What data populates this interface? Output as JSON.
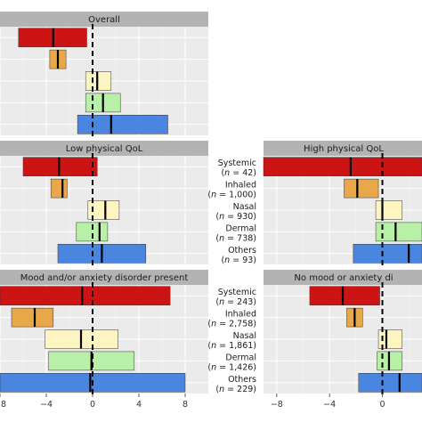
{
  "chart_data": {
    "type": "bar",
    "colors": {
      "Systemic": "#cc1414",
      "Inhaled": "#e8a84a",
      "Nasal": "#fcf5c2",
      "Dermal": "#b7f0a6",
      "Others": "#4a86e0"
    },
    "categories": [
      "Systemic",
      "Inhaled",
      "Nasal",
      "Dermal",
      "Others"
    ],
    "x_ticks": [
      -8,
      -4,
      0,
      4,
      8
    ],
    "x_tick_labels": [
      "−8",
      "−4",
      "0",
      "4",
      "8"
    ],
    "panels": [
      {
        "title": "Overall",
        "xlim": [
          -8,
          10
        ],
        "rows": [
          {
            "category": "Systemic",
            "low": -6.4,
            "high": -0.5,
            "median": -3.4
          },
          {
            "category": "Inhaled",
            "low": -3.7,
            "high": -2.3,
            "median": -3.0
          },
          {
            "category": "Nasal",
            "low": -0.6,
            "high": 1.6,
            "median": 0.4
          },
          {
            "category": "Dermal",
            "low": -0.6,
            "high": 2.4,
            "median": 0.9
          },
          {
            "category": "Others",
            "low": -1.3,
            "high": 6.5,
            "median": 1.6
          }
        ]
      },
      {
        "title": "Low physical QoL",
        "xlim": [
          -8,
          10
        ],
        "rows": [
          {
            "category": "Systemic",
            "low": -6.0,
            "high": 0.4,
            "median": -2.9
          },
          {
            "category": "Inhaled",
            "low": -3.6,
            "high": -2.2,
            "median": -2.6
          },
          {
            "category": "Nasal",
            "low": -0.4,
            "high": 2.3,
            "median": 1.1
          },
          {
            "category": "Dermal",
            "low": -1.4,
            "high": 1.3,
            "median": 0.6
          },
          {
            "category": "Others",
            "low": -3.0,
            "high": 4.6,
            "median": 0.8
          }
        ]
      },
      {
        "title": "Mood and/or anxiety disorder present",
        "xlim": [
          -8,
          10
        ],
        "rows": [
          {
            "category": "Systemic",
            "low": -8.6,
            "high": 6.7,
            "median": -0.9
          },
          {
            "category": "Inhaled",
            "low": -7.0,
            "high": -3.4,
            "median": -5.0
          },
          {
            "category": "Nasal",
            "low": -4.1,
            "high": 2.2,
            "median": -1.0
          },
          {
            "category": "Dermal",
            "low": -3.8,
            "high": 3.6,
            "median": -0.1
          },
          {
            "category": "Others",
            "low": -8.6,
            "high": 8.0,
            "median": -0.2
          }
        ]
      },
      {
        "title": "High physical QoL",
        "xlim": [
          -9,
          3
        ],
        "rows": [
          {
            "category": "Systemic",
            "low": -9.5,
            "high": 5.0,
            "median": -2.4,
            "n": "42"
          },
          {
            "category": "Inhaled",
            "low": -2.9,
            "high": -0.3,
            "median": -1.9,
            "n": "1,000"
          },
          {
            "category": "Nasal",
            "low": -0.5,
            "high": 1.5,
            "median": 0.0,
            "n": "930"
          },
          {
            "category": "Dermal",
            "low": -0.5,
            "high": 3.0,
            "median": 1.0,
            "n": "738"
          },
          {
            "category": "Others",
            "low": -2.2,
            "high": 3.0,
            "median": 2.0,
            "n": "93"
          }
        ]
      },
      {
        "title": "No mood or anxiety di",
        "xlim": [
          -9,
          3
        ],
        "rows": [
          {
            "category": "Systemic",
            "low": -5.5,
            "high": -0.2,
            "median": -3.0,
            "n": "243"
          },
          {
            "category": "Inhaled",
            "low": -2.7,
            "high": -1.5,
            "median": -2.1,
            "n": "2,758"
          },
          {
            "category": "Nasal",
            "low": -0.3,
            "high": 1.5,
            "median": 0.3,
            "n": "1,861"
          },
          {
            "category": "Dermal",
            "low": -0.4,
            "high": 1.5,
            "median": 0.5,
            "n": "1,426"
          },
          {
            "category": "Others",
            "low": -1.8,
            "high": 3.0,
            "median": 1.3,
            "n": "229"
          }
        ]
      }
    ]
  }
}
